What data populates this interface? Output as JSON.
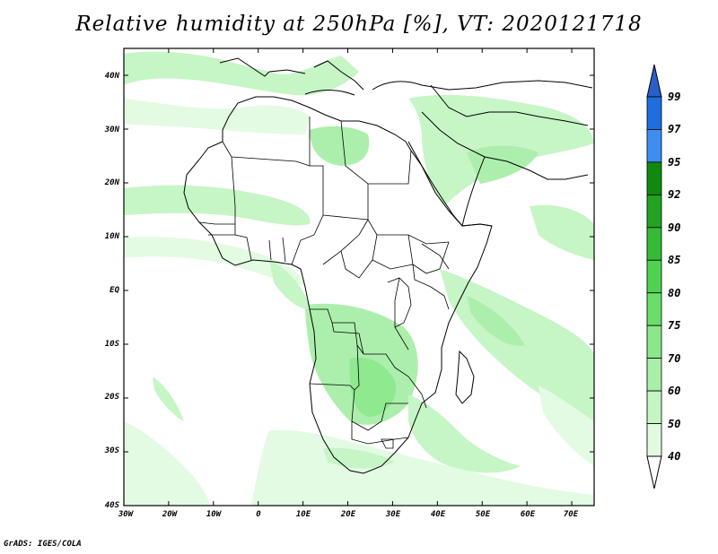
{
  "title": "Relative humidity at 250hPa [%], VT: 2020121718",
  "credit": "GrADS: IGES/COLA",
  "map": {
    "lat_labels": [
      "40N",
      "30N",
      "20N",
      "10N",
      "EQ",
      "10S",
      "20S",
      "30S",
      "40S"
    ],
    "lon_labels": [
      "30W",
      "20W",
      "10W",
      "0",
      "10E",
      "20E",
      "30E",
      "40E",
      "50E",
      "60E",
      "70E"
    ],
    "lat_range": [
      -40,
      45
    ],
    "lon_range": [
      -30,
      75
    ]
  },
  "colorbar": {
    "levels": [
      "99",
      "97",
      "95",
      "92",
      "90",
      "85",
      "80",
      "75",
      "70",
      "60",
      "50",
      "40"
    ],
    "colors": [
      "#1f6ee0",
      "#3d8ef0",
      "#0f8a0f",
      "#22a322",
      "#36bb36",
      "#4fd24f",
      "#6ade6a",
      "#8ae88a",
      "#a8efa8",
      "#c4f5c4",
      "#e1fbe1"
    ],
    "top_arrow_color": "#2a5fc8"
  }
}
